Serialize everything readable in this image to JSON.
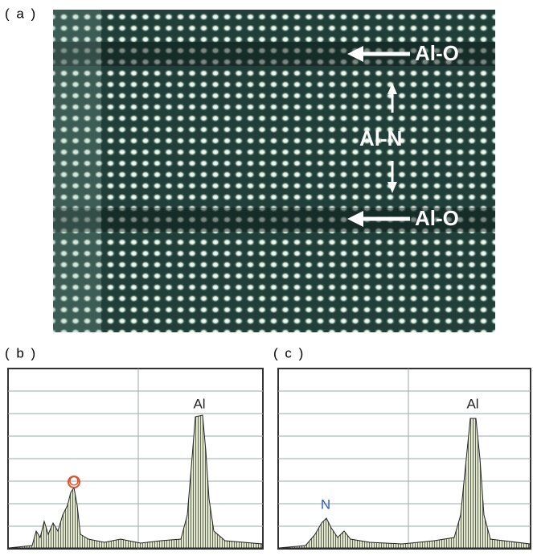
{
  "panel_a": {
    "label": "( a )",
    "annotations": [
      "Al-O",
      "Al-N",
      "Al-O"
    ]
  },
  "panel_b": {
    "label": "( b )",
    "peaks": [
      "O",
      "Al"
    ]
  },
  "panel_c": {
    "label": "( c )",
    "peaks": [
      "N",
      "Al"
    ]
  }
}
